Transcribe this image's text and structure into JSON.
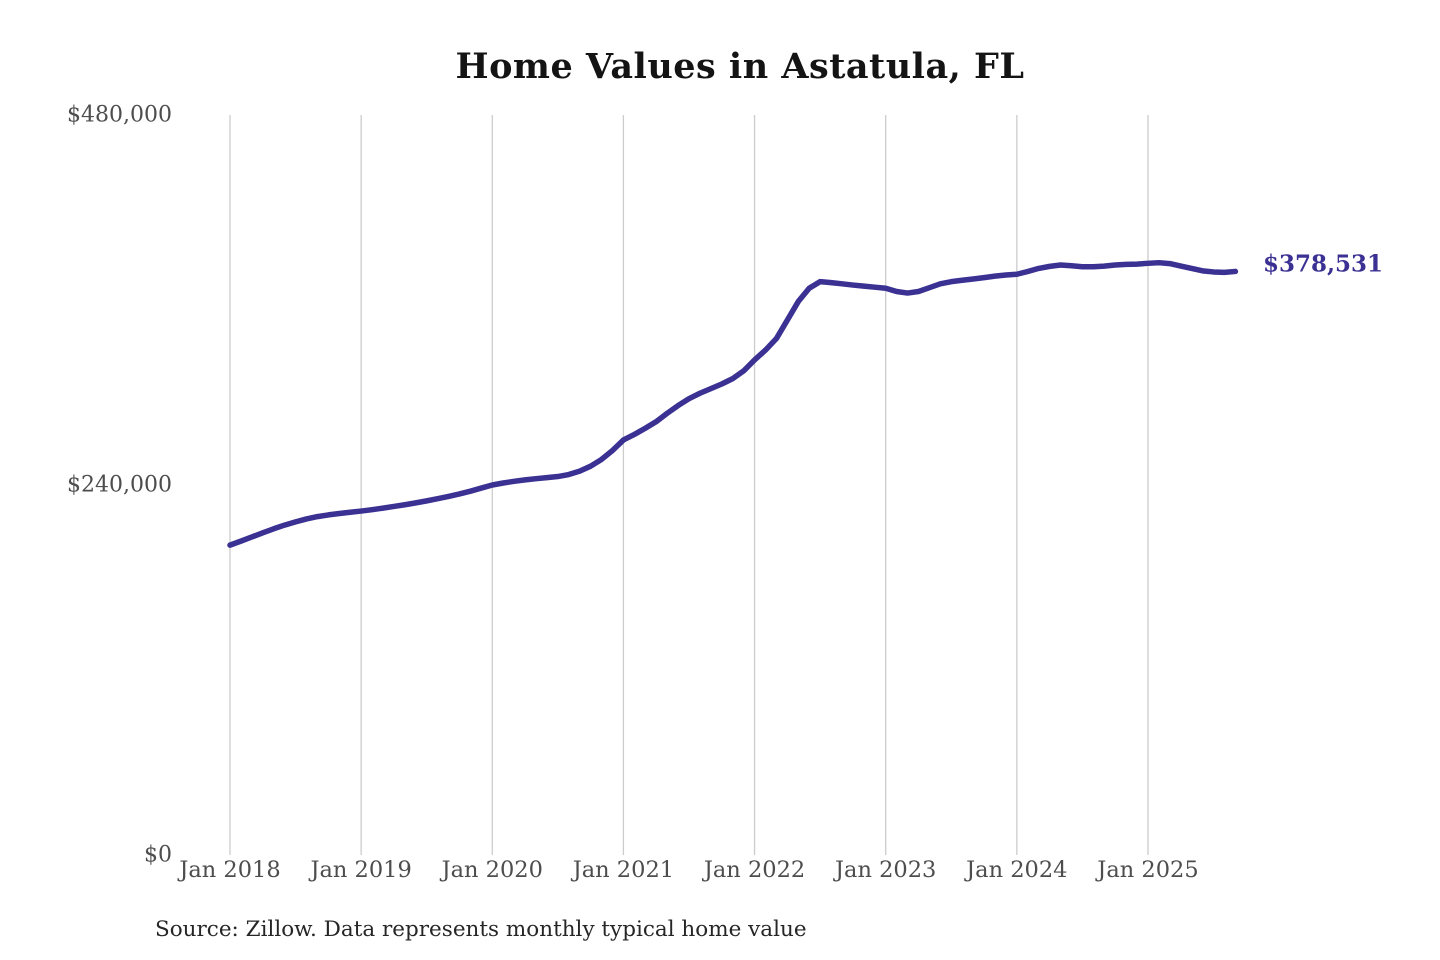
{
  "chart_data": {
    "type": "line",
    "title": "Home Values in Astatula, FL",
    "source_note": "Source: Zillow. Data represents monthly typical home value",
    "series_name": "Monthly typical home value",
    "end_label": "$378,531",
    "latest_value": 378531,
    "line_color": "#3a3193",
    "gridline_color": "#cccccc",
    "grid": "vertical-only",
    "legend": "none",
    "ylim": [
      0,
      480000
    ],
    "y_tick_values": [
      0,
      240000,
      480000
    ],
    "y_tick_labels": [
      "$0",
      "$240,000",
      "$480,000"
    ],
    "x_tick_labels": [
      "Jan 2018",
      "Jan 2019",
      "Jan 2020",
      "Jan 2021",
      "Jan 2022",
      "Jan 2023",
      "Jan 2024",
      "Jan 2025"
    ],
    "x_start": "Jan 2018",
    "x_end": "Sep 2025",
    "x_frequency": "monthly",
    "values": [
      201000,
      203600,
      206300,
      209000,
      211600,
      214000,
      216100,
      218000,
      219500,
      220600,
      221500,
      222300,
      223100,
      224000,
      225000,
      226100,
      227200,
      228400,
      229700,
      231100,
      232600,
      234200,
      236000,
      238000,
      240000,
      241300,
      242400,
      243300,
      244100,
      244800,
      245500,
      246800,
      249000,
      252200,
      256600,
      262400,
      269200,
      272800,
      276800,
      281100,
      286500,
      291500,
      296000,
      299500,
      302500,
      305500,
      309000,
      314000,
      321100,
      327500,
      335000,
      347000,
      359000,
      367600,
      371900,
      371300,
      370500,
      369700,
      369000,
      368300,
      367600,
      365500,
      364500,
      365500,
      368000,
      370500,
      371900,
      372800,
      373600,
      374500,
      375500,
      376200,
      376700,
      378500,
      380500,
      381800,
      382700,
      382200,
      381600,
      381600,
      382000,
      382700,
      383100,
      383300,
      383800,
      384200,
      383600,
      382000,
      380500,
      378900,
      378200,
      377900,
      378531
    ]
  }
}
